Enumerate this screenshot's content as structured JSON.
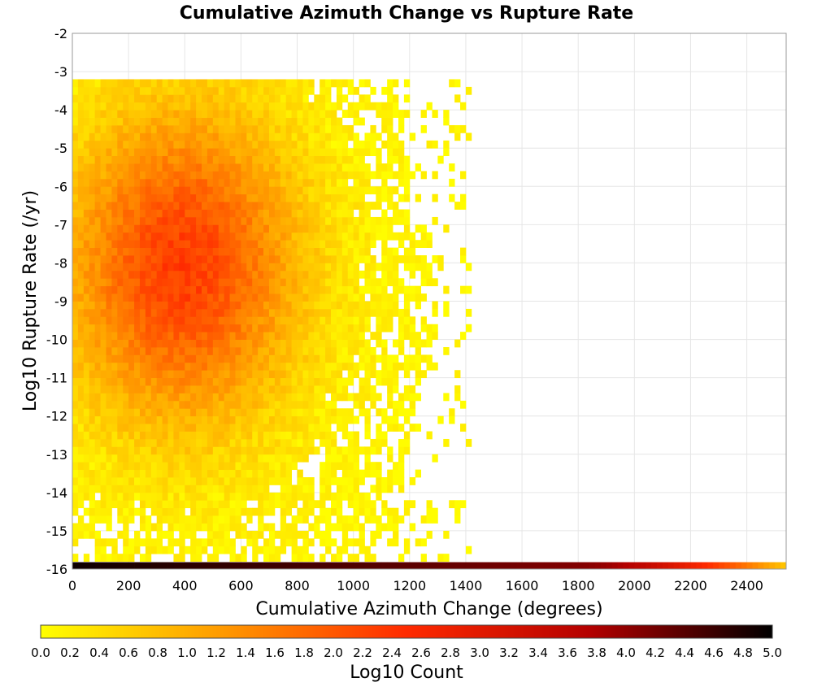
{
  "chart_data": {
    "type": "heatmap",
    "title": "Cumulative Azimuth Change vs Rupture Rate",
    "xlabel": "Cumulative Azimuth Change (degrees)",
    "ylabel": "Log10 Rupture Rate (/yr)",
    "xlim": [
      0,
      2540
    ],
    "ylim": [
      -16,
      -2
    ],
    "x_ticks": [
      "0",
      "200",
      "400",
      "600",
      "800",
      "1000",
      "1200",
      "1400",
      "1600",
      "1800",
      "2000",
      "2200",
      "2400"
    ],
    "y_ticks": [
      "-2",
      "-3",
      "-4",
      "-5",
      "-6",
      "-7",
      "-8",
      "-9",
      "-10",
      "-11",
      "-12",
      "-13",
      "-14",
      "-15",
      "-16"
    ],
    "grid": true,
    "colorbar": {
      "label": "Log10 Count",
      "range": [
        0.0,
        5.0
      ],
      "ticks": [
        "0.0",
        "0.2",
        "0.4",
        "0.6",
        "0.8",
        "1.0",
        "1.2",
        "1.4",
        "1.6",
        "1.8",
        "2.0",
        "2.2",
        "2.4",
        "2.6",
        "2.8",
        "3.0",
        "3.2",
        "3.4",
        "3.6",
        "3.8",
        "4.0",
        "4.2",
        "4.4",
        "4.6",
        "4.8",
        "5.0"
      ],
      "colors": [
        "#ffff00",
        "#ff9900",
        "#ff2a00",
        "#b40000",
        "#000000"
      ]
    },
    "density": {
      "description_peak_x": 380,
      "description_peak_y": -8.2,
      "peak_log_count": 2.3,
      "max_extent_x": 1420,
      "min_y": -15.8,
      "max_y": -3.4
    },
    "bottom_row": {
      "y_value": -16,
      "x_from": 0,
      "x_to": 2540,
      "log_count_start": 4.9,
      "log_count_end": 0.6
    }
  }
}
